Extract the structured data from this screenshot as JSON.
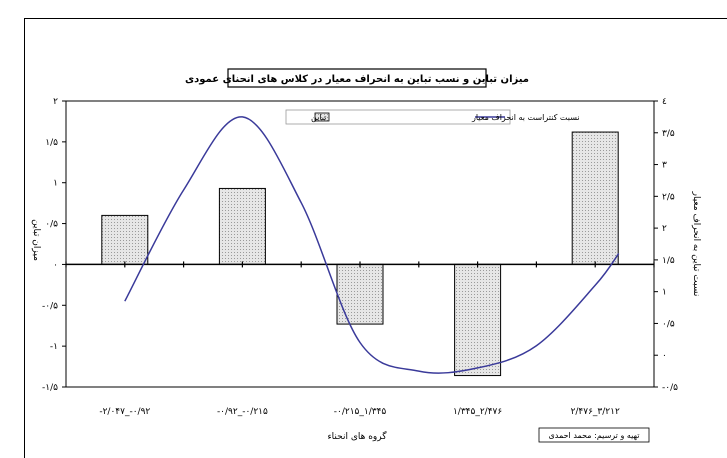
{
  "chart_data": {
    "type": "bar",
    "title": "میزان تباین و نسب تباین به انحراف معیار در کلاس های انحنای عمودی",
    "xlabel": "گروه های انحناء",
    "ylabel": "میزان تباین",
    "y2label": "نسبت تباین به انحراف معیار",
    "categories": [
      "-۲/۰۴۷_-۰/۹۲",
      "-۰/۹۲_-۰/۲۱۵",
      "-۰/۲۱۵_۱/۳۴۵",
      "۱/۳۴۵_۲/۴۷۶",
      "۲/۴۷۶_۳/۲۱۲"
    ],
    "series": [
      {
        "name": "تباین",
        "axis": "left",
        "values": [
          0.6,
          0.93,
          -0.73,
          -1.36,
          1.62
        ]
      },
      {
        "name": "نسبت کنتراست به انحراف معیار",
        "axis": "right",
        "type": "line",
        "x": [
          0,
          0.5,
          1,
          1.5,
          2,
          2.5,
          3,
          3.5,
          4,
          4.2
        ],
        "values": [
          0.85,
          2.6,
          3.75,
          2.4,
          0.2,
          -0.25,
          -0.2,
          0.15,
          1.1,
          1.6
        ]
      }
    ],
    "ylim": [
      -1.5,
      2
    ],
    "y2lim": [
      -0.5,
      4
    ],
    "yticks": [
      "۲",
      "۱/۵",
      "۱",
      "۰/۵",
      "۰",
      "-۰/۵",
      "-۱",
      "-۱/۵"
    ],
    "y2ticks": [
      "٤",
      "۳/۵",
      "۳",
      "۲/۵",
      "۲",
      "۱/۵",
      "۱",
      "۰/۵",
      "۰",
      "-۰/۵"
    ],
    "legend_position": "top-center",
    "credit": "تهیه و ترسیم: محمد احمدی",
    "colors": {
      "bar_fill": "#d8d8d8",
      "line": "#3a3a9a"
    }
  }
}
